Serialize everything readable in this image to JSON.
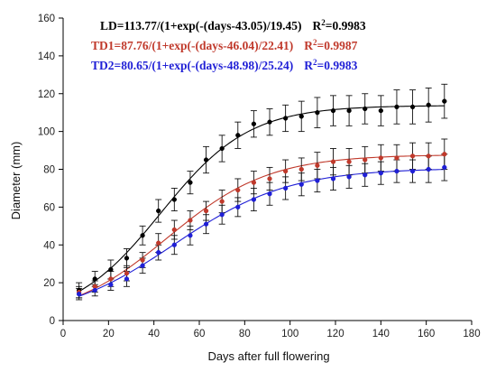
{
  "chart_data": {
    "type": "line",
    "xlabel": "Days after full flowering",
    "ylabel": "Diameter (mm)",
    "xlim": [
      0,
      180
    ],
    "ylim": [
      0,
      160
    ],
    "x_ticks": [
      0,
      20,
      40,
      60,
      80,
      100,
      120,
      140,
      160,
      180
    ],
    "y_ticks": [
      0,
      20,
      40,
      60,
      80,
      100,
      120,
      140,
      160
    ],
    "grid": false,
    "legend": "none",
    "equations": [
      {
        "text": "LD=113.77/(1+exp(-(days-43.05)/19.45)",
        "r2_label": "R",
        "r2_sup": "2",
        "r2_value": "=0.9983",
        "color": "#000000"
      },
      {
        "text": "TD1=87.76/(1+exp(-(days-46.04)/22.41)",
        "r2_label": "R",
        "r2_sup": "2",
        "r2_value": "=0.9987",
        "color": "#c0392b"
      },
      {
        "text": "TD2=80.65/(1+exp(-(days-48.98)/25.24)",
        "r2_label": "R",
        "r2_sup": "2",
        "r2_value": "=0.9983",
        "color": "#1f1fd6"
      }
    ],
    "series": [
      {
        "name": "LD",
        "color": "#000000",
        "fit": {
          "a": 113.77,
          "x0": 43.05,
          "b": 19.45
        },
        "x": [
          7,
          14,
          21,
          28,
          35,
          42,
          49,
          56,
          63,
          70,
          77,
          84,
          91,
          98,
          105,
          112,
          119,
          126,
          133,
          140,
          147,
          154,
          161,
          168
        ],
        "y": [
          16,
          22,
          27,
          33,
          45,
          58,
          64,
          73,
          85,
          91,
          98,
          104,
          105,
          107,
          108,
          110,
          111,
          111,
          112,
          111,
          113,
          113,
          114,
          116
        ],
        "err": [
          4,
          4,
          5,
          5,
          5,
          6,
          6,
          6,
          7,
          7,
          7,
          7,
          7,
          7,
          8,
          8,
          8,
          8,
          8,
          8,
          9,
          9,
          9,
          9
        ]
      },
      {
        "name": "TD1",
        "color": "#c0392b",
        "fit": {
          "a": 87.76,
          "x0": 46.04,
          "b": 22.41
        },
        "x": [
          7,
          14,
          21,
          28,
          35,
          42,
          49,
          56,
          63,
          70,
          77,
          84,
          91,
          98,
          105,
          112,
          119,
          126,
          133,
          140,
          147,
          154,
          161,
          168
        ],
        "y": [
          15,
          18,
          22,
          25,
          32,
          41,
          48,
          53,
          58,
          63,
          69,
          73,
          75,
          79,
          80,
          82,
          84,
          84,
          85,
          86,
          86,
          87,
          87,
          88
        ],
        "err": [
          3,
          3,
          4,
          4,
          4,
          5,
          5,
          5,
          5,
          6,
          6,
          6,
          6,
          6,
          6,
          7,
          7,
          7,
          7,
          7,
          7,
          7,
          7,
          8
        ]
      },
      {
        "name": "TD2",
        "color": "#1f1fd6",
        "fit": {
          "a": 80.65,
          "x0": 48.98,
          "b": 25.24
        },
        "x": [
          7,
          14,
          21,
          28,
          35,
          42,
          49,
          56,
          63,
          70,
          77,
          84,
          91,
          98,
          105,
          112,
          119,
          126,
          133,
          140,
          147,
          154,
          161,
          168
        ],
        "y": [
          14,
          16,
          19,
          22,
          29,
          36,
          40,
          45,
          51,
          56,
          60,
          64,
          67,
          70,
          72,
          74,
          75,
          76,
          77,
          78,
          79,
          79,
          80,
          81
        ],
        "err": [
          3,
          3,
          3,
          4,
          4,
          4,
          5,
          5,
          5,
          5,
          5,
          6,
          6,
          6,
          6,
          6,
          6,
          6,
          6,
          6,
          6,
          6,
          7,
          7
        ]
      }
    ]
  }
}
